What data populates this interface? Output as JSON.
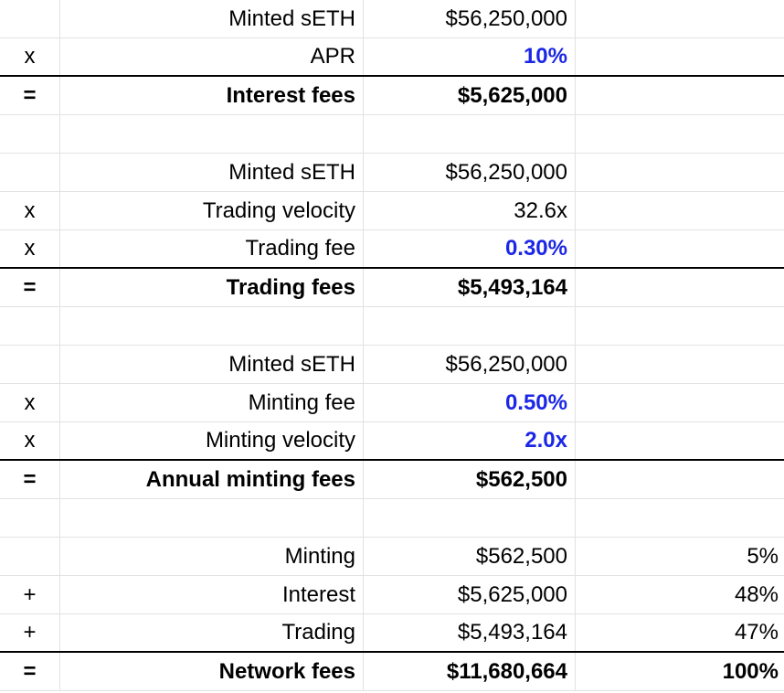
{
  "rows": [
    {
      "op": "",
      "label": "Minted sETH",
      "value": "$56,250,000",
      "pct": "",
      "style": "normal",
      "value_style": "normal",
      "separator": "thin"
    },
    {
      "op": "x",
      "label": "APR",
      "value": "10%",
      "pct": "",
      "style": "normal",
      "value_style": "input",
      "separator": "thick"
    },
    {
      "op": "=",
      "label": "Interest fees",
      "value": "$5,625,000",
      "pct": "",
      "style": "bold",
      "value_style": "bold",
      "separator": "thin"
    },
    {
      "op": "",
      "label": "",
      "value": "",
      "pct": "",
      "style": "normal",
      "value_style": "normal",
      "separator": "thin"
    },
    {
      "op": "",
      "label": "Minted sETH",
      "value": "$56,250,000",
      "pct": "",
      "style": "normal",
      "value_style": "normal",
      "separator": "thin"
    },
    {
      "op": "x",
      "label": "Trading velocity",
      "value": "32.6x",
      "pct": "",
      "style": "normal",
      "value_style": "normal",
      "separator": "thin"
    },
    {
      "op": "x",
      "label": "Trading fee",
      "value": "0.30%",
      "pct": "",
      "style": "normal",
      "value_style": "input",
      "separator": "thick"
    },
    {
      "op": "=",
      "label": "Trading fees",
      "value": "$5,493,164",
      "pct": "",
      "style": "bold",
      "value_style": "bold",
      "separator": "thin"
    },
    {
      "op": "",
      "label": "",
      "value": "",
      "pct": "",
      "style": "normal",
      "value_style": "normal",
      "separator": "thin"
    },
    {
      "op": "",
      "label": "Minted sETH",
      "value": "$56,250,000",
      "pct": "",
      "style": "normal",
      "value_style": "normal",
      "separator": "thin"
    },
    {
      "op": "x",
      "label": "Minting fee",
      "value": "0.50%",
      "pct": "",
      "style": "normal",
      "value_style": "input",
      "separator": "thin"
    },
    {
      "op": "x",
      "label": "Minting velocity",
      "value": "2.0x",
      "pct": "",
      "style": "normal",
      "value_style": "input",
      "separator": "thick"
    },
    {
      "op": "=",
      "label": "Annual minting fees",
      "value": "$562,500",
      "pct": "",
      "style": "bold",
      "value_style": "bold",
      "separator": "thin"
    },
    {
      "op": "",
      "label": "",
      "value": "",
      "pct": "",
      "style": "normal",
      "value_style": "normal",
      "separator": "thin"
    },
    {
      "op": "",
      "label": "Minting",
      "value": "$562,500",
      "pct": "5%",
      "style": "normal",
      "value_style": "normal",
      "separator": "thin"
    },
    {
      "op": "+",
      "label": "Interest",
      "value": "$5,625,000",
      "pct": "48%",
      "style": "normal",
      "value_style": "normal",
      "separator": "thin"
    },
    {
      "op": "+",
      "label": "Trading",
      "value": "$5,493,164",
      "pct": "47%",
      "style": "normal",
      "value_style": "normal",
      "separator": "thick"
    },
    {
      "op": "=",
      "label": "Network fees",
      "value": "$11,680,664",
      "pct": "100%",
      "style": "bold",
      "value_style": "bold",
      "separator": "thin"
    }
  ],
  "colors": {
    "input_value": "#1b27e6",
    "grid_line": "#e2e2e2",
    "total_rule": "#000000"
  }
}
